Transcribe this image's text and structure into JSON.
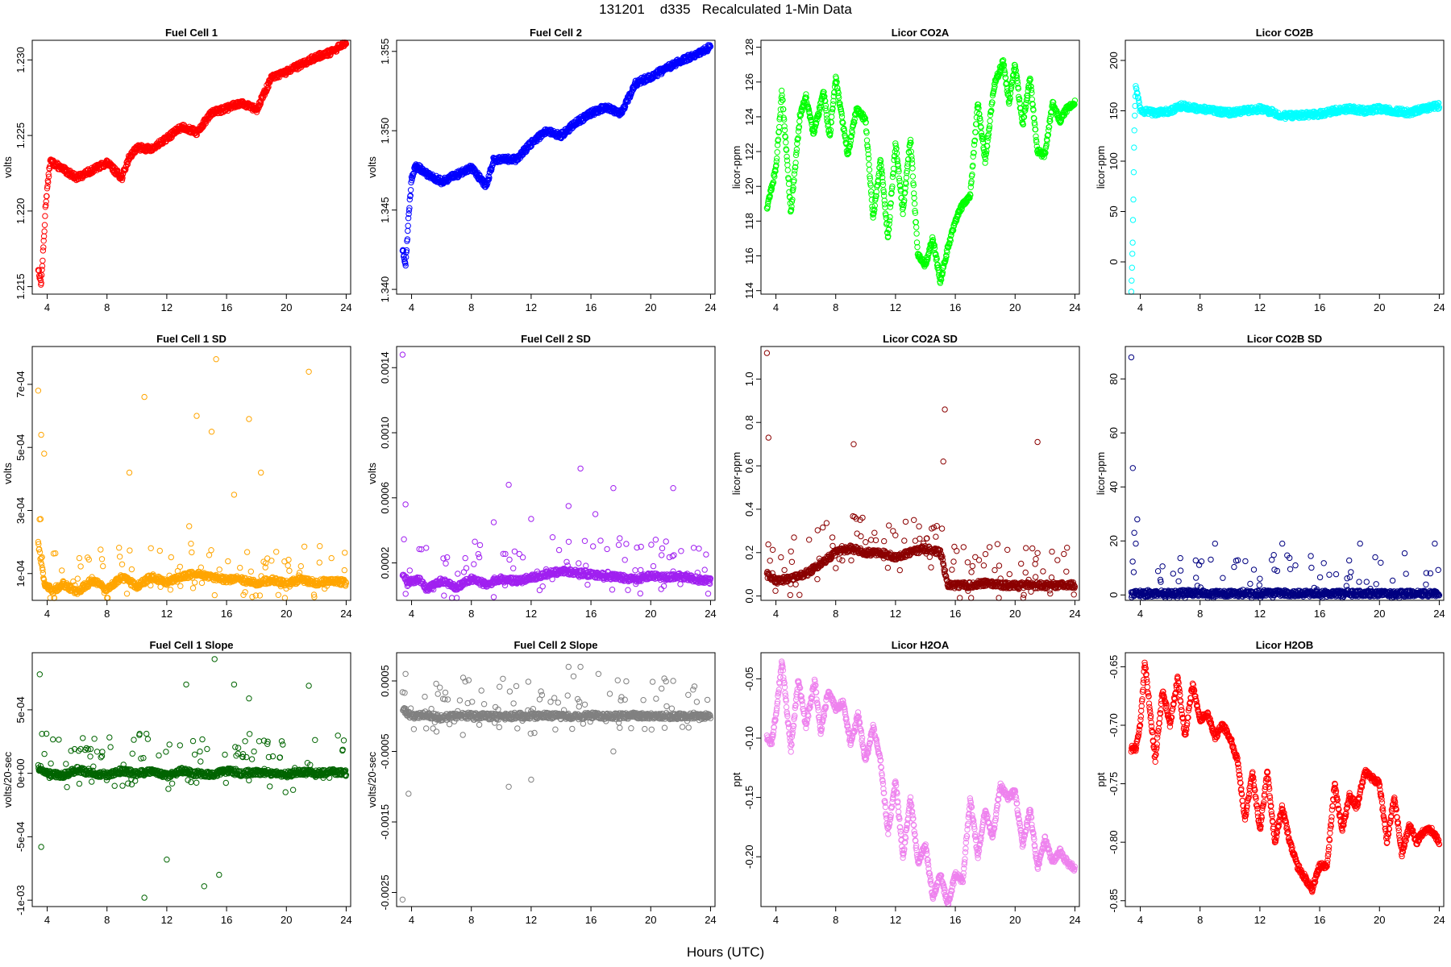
{
  "page": {
    "title": "131201    d335   Recalculated 1-Min Data",
    "xlabel": "Hours (UTC)"
  },
  "chart_data": [
    {
      "type": "scatter",
      "title": "Fuel Cell 1",
      "ylabel": "volts",
      "color": "#ff0000",
      "ylim": [
        1.2145,
        1.2313
      ],
      "yticks": [
        1.215,
        1.22,
        1.225,
        1.23
      ],
      "ytick_labels": [
        "1.215",
        "1.220",
        "1.225",
        "1.230"
      ],
      "xlim": [
        3,
        24.3
      ],
      "xticks": [
        4,
        8,
        12,
        16,
        20,
        24
      ],
      "xtick_labels": [
        "4",
        "8",
        "12",
        "16",
        "20",
        "24"
      ],
      "x": [
        3.4,
        3.6,
        3.8,
        3.9,
        4.2,
        5,
        6,
        7,
        8,
        9,
        9.5,
        10,
        11,
        12,
        13,
        14,
        15,
        16,
        17,
        18,
        19,
        20,
        21,
        22,
        23,
        24
      ],
      "y": [
        1.2162,
        1.2152,
        1.2185,
        1.2205,
        1.2233,
        1.2228,
        1.2222,
        1.2227,
        1.2232,
        1.2222,
        1.2236,
        1.2242,
        1.2241,
        1.2248,
        1.2256,
        1.2252,
        1.2265,
        1.2268,
        1.2272,
        1.2267,
        1.2288,
        1.2292,
        1.2297,
        1.2302,
        1.2305,
        1.2312
      ]
    },
    {
      "type": "scatter",
      "title": "Fuel Cell 2",
      "ylabel": "volts",
      "color": "#0000ff",
      "ylim": [
        1.3397,
        1.3557
      ],
      "yticks": [
        1.34,
        1.345,
        1.35,
        1.355
      ],
      "ytick_labels": [
        "1.340",
        "1.345",
        "1.350",
        "1.355"
      ],
      "xlim": [
        3,
        24.3
      ],
      "xticks": [
        4,
        8,
        12,
        16,
        20,
        24
      ],
      "xtick_labels": [
        "4",
        "8",
        "12",
        "16",
        "20",
        "24"
      ],
      "x": [
        3.4,
        3.6,
        3.8,
        4.0,
        4.3,
        5,
        6,
        7,
        8,
        9,
        9.5,
        10,
        11,
        12,
        13,
        14,
        15,
        16,
        17,
        18,
        19,
        20,
        21,
        22,
        23,
        24
      ],
      "y": [
        1.3425,
        1.3415,
        1.3445,
        1.347,
        1.3478,
        1.3473,
        1.3468,
        1.3472,
        1.3477,
        1.3465,
        1.3482,
        1.3482,
        1.3482,
        1.3492,
        1.35,
        1.3497,
        1.3505,
        1.3511,
        1.3515,
        1.3511,
        1.353,
        1.3534,
        1.3539,
        1.3544,
        1.3548,
        1.3553
      ]
    },
    {
      "type": "scatter",
      "title": "Licor CO2A",
      "ylabel": "licor-ppm",
      "color": "#00ff00",
      "ylim": [
        113.8,
        128.4
      ],
      "yticks": [
        114,
        116,
        118,
        120,
        122,
        124,
        126,
        128
      ],
      "ytick_labels": [
        "114",
        "116",
        "118",
        "120",
        "122",
        "124",
        "126",
        "128"
      ],
      "xlim": [
        3,
        24.3
      ],
      "xticks": [
        4,
        8,
        12,
        16,
        20,
        24
      ],
      "xtick_labels": [
        "4",
        "8",
        "12",
        "16",
        "20",
        "24"
      ],
      "x": [
        3.4,
        4.0,
        4.4,
        5.0,
        5.6,
        6.0,
        6.5,
        7.2,
        7.6,
        8.0,
        8.8,
        9.4,
        10.0,
        10.5,
        11.0,
        11.5,
        12.0,
        12.5,
        13.0,
        13.5,
        14.0,
        14.5,
        15.0,
        15.5,
        16.0,
        16.5,
        17.0,
        17.5,
        18.0,
        18.6,
        19.2,
        19.6,
        20.0,
        20.5,
        21.0,
        21.5,
        22.0,
        22.5,
        23.0,
        23.5,
        24.0
      ],
      "y": [
        118.8,
        121,
        125.5,
        118.5,
        124,
        125.2,
        123,
        125.4,
        122.8,
        126.3,
        121.8,
        124.5,
        123.8,
        118.2,
        121.5,
        117,
        122.5,
        118.5,
        122.8,
        116,
        115.5,
        117,
        114.5,
        116.5,
        118,
        119,
        119.5,
        124.8,
        121.5,
        125.8,
        127.2,
        124.8,
        127,
        123.5,
        126.2,
        122,
        121.8,
        124.8,
        123.8,
        124.5,
        124.8
      ]
    },
    {
      "type": "scatter",
      "title": "Licor CO2B",
      "ylabel": "licor-ppm",
      "color": "#00ffff",
      "ylim": [
        -32,
        220
      ],
      "yticks": [
        0,
        50,
        100,
        150,
        200
      ],
      "ytick_labels": [
        "0",
        "50",
        "100",
        "150",
        "200"
      ],
      "xlim": [
        3,
        24.3
      ],
      "xticks": [
        4,
        8,
        12,
        16,
        20,
        24
      ],
      "xtick_labels": [
        "4",
        "8",
        "12",
        "16",
        "20",
        "24"
      ],
      "x": [
        3.4,
        3.5,
        3.6,
        3.7,
        4.0,
        5,
        6,
        6.8,
        8,
        9,
        10,
        11,
        12,
        12.5,
        13,
        13.5,
        14,
        15,
        16,
        17,
        18,
        19,
        20,
        21,
        22,
        23,
        24
      ],
      "y": [
        -30,
        25,
        130,
        175,
        150,
        148,
        150,
        155,
        152,
        150,
        148,
        150,
        152,
        150,
        148,
        145,
        145,
        146,
        147,
        150,
        152,
        150,
        152,
        150,
        148,
        152,
        155
      ]
    },
    {
      "type": "scatter",
      "title": "Fuel Cell 1 SD",
      "ylabel": "volts",
      "color": "#ffa500",
      "ylim": [
        1.5e-05,
        0.00082
      ],
      "yticks": [
        0.0001,
        0.0003,
        0.0005,
        0.0007
      ],
      "ytick_labels": [
        "1e-04",
        "3e-04",
        "5e-04",
        "7e-04"
      ],
      "xlim": [
        3,
        24.3
      ],
      "xticks": [
        4,
        8,
        12,
        16,
        20,
        24
      ],
      "xtick_labels": [
        "4",
        "8",
        "12",
        "16",
        "20",
        "24"
      ],
      "x": [
        3.4,
        3.8,
        4.5,
        5,
        6,
        7,
        8,
        9,
        10,
        11,
        12,
        13,
        14,
        15,
        16,
        17,
        18,
        19,
        20,
        21,
        22,
        23,
        24
      ],
      "y": [
        0.0002,
        7e-05,
        4e-05,
        7e-05,
        4e-05,
        8e-05,
        5e-05,
        9e-05,
        6e-05,
        9e-05,
        7e-05,
        9e-05,
        0.0001,
        9e-05,
        8e-05,
        8e-05,
        7e-05,
        8e-05,
        7e-05,
        8e-05,
        7e-05,
        8e-05,
        7e-05
      ],
      "outliers_x": [
        3.4,
        3.6,
        3.8,
        10.5,
        14,
        15.3,
        17.5,
        21.5,
        9.5,
        13.5,
        15,
        16.5,
        18.3
      ],
      "outliers_y": [
        0.00068,
        0.00054,
        0.00048,
        0.00066,
        0.0006,
        0.00078,
        0.00059,
        0.00074,
        0.00042,
        0.00025,
        0.00055,
        0.00035,
        0.00042
      ]
    },
    {
      "type": "scatter",
      "title": "Fuel Cell 2 SD",
      "ylabel": "volts",
      "color": "#a020f0",
      "ylim": [
        -3e-05,
        0.00153
      ],
      "yticks": [
        0.0002,
        0.0006,
        0.001,
        0.0014
      ],
      "ytick_labels": [
        "0.0002",
        "0.0006",
        "0.0010",
        "0.0014"
      ],
      "xlim": [
        3,
        24.3
      ],
      "xticks": [
        4,
        8,
        12,
        16,
        20,
        24
      ],
      "xtick_labels": [
        "4",
        "8",
        "12",
        "16",
        "20",
        "24"
      ],
      "x": [
        3.4,
        3.8,
        4.5,
        5,
        6,
        7,
        8,
        9,
        10,
        11,
        12,
        13,
        14,
        15,
        16,
        17,
        18,
        19,
        20,
        21,
        22,
        23,
        24
      ],
      "y": [
        0.00012,
        8e-05,
        0.0001,
        4e-05,
        9e-05,
        5e-05,
        0.0001,
        7e-05,
        0.0001,
        9e-05,
        0.00011,
        0.00013,
        0.00015,
        0.00014,
        0.00013,
        0.00012,
        0.00011,
        0.0001,
        0.00012,
        0.00011,
        0.00012,
        0.0001,
        9e-05
      ],
      "outliers_x": [
        3.4,
        3.6,
        10.5,
        14.5,
        15.3,
        16.3,
        17.5,
        21.5,
        12,
        9.5
      ],
      "outliers_y": [
        0.00148,
        0.00056,
        0.00068,
        0.00055,
        0.00078,
        0.0005,
        0.00066,
        0.00066,
        0.00047,
        0.00045
      ]
    },
    {
      "type": "scatter",
      "title": "Licor CO2A SD",
      "ylabel": "licor-ppm",
      "color": "#8b0000",
      "ylim": [
        -0.02,
        1.15
      ],
      "yticks": [
        0,
        0.2,
        0.4,
        0.6,
        0.8,
        1.0
      ],
      "ytick_labels": [
        "0.0",
        "0.2",
        "0.4",
        "0.6",
        "0.8",
        "1.0"
      ],
      "xlim": [
        3,
        24.3
      ],
      "xticks": [
        4,
        8,
        12,
        16,
        20,
        24
      ],
      "xtick_labels": [
        "4",
        "8",
        "12",
        "16",
        "20",
        "24"
      ],
      "x": [
        3.4,
        4,
        5,
        6,
        7,
        8,
        9,
        10,
        11,
        12,
        13,
        14,
        15,
        15.5,
        16,
        17,
        18,
        19,
        20,
        21,
        22,
        23,
        24
      ],
      "y": [
        0.1,
        0.07,
        0.08,
        0.1,
        0.15,
        0.2,
        0.22,
        0.2,
        0.2,
        0.18,
        0.2,
        0.22,
        0.2,
        0.05,
        0.05,
        0.05,
        0.06,
        0.05,
        0.05,
        0.05,
        0.05,
        0.05,
        0.05
      ],
      "outliers_x": [
        3.4,
        3.5,
        9.2,
        15.3,
        21.5,
        15.2
      ],
      "outliers_y": [
        1.12,
        0.73,
        0.7,
        0.86,
        0.71,
        0.62
      ]
    },
    {
      "type": "scatter",
      "title": "Licor CO2B SD",
      "ylabel": "licor-ppm",
      "color": "#000080",
      "ylim": [
        -2,
        92
      ],
      "yticks": [
        0,
        20,
        40,
        60,
        80
      ],
      "ytick_labels": [
        "0",
        "20",
        "40",
        "60",
        "80"
      ],
      "xlim": [
        3,
        24.3
      ],
      "xticks": [
        4,
        8,
        12,
        16,
        20,
        24
      ],
      "xtick_labels": [
        "4",
        "8",
        "12",
        "16",
        "20",
        "24"
      ],
      "x": [
        3.4,
        4,
        5,
        6,
        7,
        8,
        9,
        10,
        11,
        12,
        13,
        14,
        15,
        16,
        17,
        18,
        19,
        20,
        21,
        22,
        23,
        24
      ],
      "y": [
        0.5,
        0.5,
        0.5,
        0.6,
        0.8,
        0.6,
        0.5,
        0.5,
        0.5,
        0.6,
        0.7,
        0.6,
        0.5,
        0.5,
        0.5,
        0.5,
        0.5,
        0.5,
        0.5,
        0.5,
        0.5,
        0.5
      ],
      "outliers_x": [
        3.4,
        3.5,
        3.6,
        3.8,
        3.7,
        9,
        12.8,
        13.5,
        18.7,
        23.7,
        6.7,
        12
      ],
      "outliers_y": [
        88,
        47,
        23,
        28,
        19,
        19,
        13,
        19,
        19,
        19,
        9,
        6
      ]
    },
    {
      "type": "scatter",
      "title": "Fuel Cell 1 Slope",
      "ylabel": "volts/20-sec",
      "color": "#006400",
      "ylim": [
        -0.00105,
        0.00095
      ],
      "yticks": [
        -0.001,
        -0.0005,
        0,
        0.0005
      ],
      "ytick_labels": [
        "-1e-03",
        "-5e-04",
        "0e+00",
        "5e-04"
      ],
      "xlim": [
        3,
        24.3
      ],
      "xticks": [
        4,
        8,
        12,
        16,
        20,
        24
      ],
      "xtick_labels": [
        "4",
        "8",
        "12",
        "16",
        "20",
        "24"
      ],
      "x": [
        3.4,
        4,
        5,
        6,
        7,
        8,
        9,
        10,
        11,
        12,
        13,
        14,
        15,
        16,
        17,
        18,
        19,
        20,
        21,
        22,
        23,
        24
      ],
      "y": [
        5e-05,
        0,
        -2e-05,
        3e-05,
        0,
        -1e-05,
        2e-05,
        0,
        1e-05,
        -2e-05,
        2e-05,
        0,
        -1e-05,
        2e-05,
        0,
        1e-05,
        0,
        -1e-05,
        1e-05,
        0,
        1e-05,
        0
      ],
      "outliers_x": [
        3.5,
        3.6,
        10.5,
        13.3,
        14.5,
        15.2,
        12,
        15.5,
        16.5,
        21.5,
        17.5
      ],
      "outliers_y": [
        0.00078,
        -0.00058,
        -0.00098,
        0.0007,
        -0.00089,
        0.0009,
        -0.00068,
        -0.0008,
        0.0007,
        0.00069,
        0.00059
      ]
    },
    {
      "type": "scatter",
      "title": "Fuel Cell 2 Slope",
      "ylabel": "volts/20-sec",
      "color": "#808080",
      "ylim": [
        -0.0027,
        0.0009
      ],
      "yticks": [
        -0.0025,
        -0.0015,
        -0.0005,
        0.0005
      ],
      "ytick_labels": [
        "-0.0025",
        "-0.0015",
        "-0.0005",
        "0.0005"
      ],
      "xlim": [
        3,
        24.3
      ],
      "xticks": [
        4,
        8,
        12,
        16,
        20,
        24
      ],
      "xtick_labels": [
        "4",
        "8",
        "12",
        "16",
        "20",
        "24"
      ],
      "x": [
        3.4,
        4,
        5,
        6,
        7,
        8,
        9,
        10,
        11,
        12,
        13,
        14,
        15,
        16,
        17,
        18,
        19,
        20,
        21,
        22,
        23,
        24
      ],
      "y": [
        0.0001,
        0,
        2e-05,
        -2e-05,
        0,
        1e-05,
        0,
        -1e-05,
        1e-05,
        0,
        1e-05,
        0,
        -1e-05,
        1e-05,
        0,
        0,
        1e-05,
        0,
        0,
        0,
        0,
        0
      ],
      "outliers_x": [
        3.4,
        3.6,
        3.8,
        10.5,
        12,
        14.5,
        15.3,
        16.5,
        17.5,
        21.5
      ],
      "outliers_y": [
        -0.0026,
        0.0006,
        -0.0011,
        -0.001,
        -0.0009,
        0.0007,
        0.0007,
        0.0006,
        -0.0005,
        0.0005
      ]
    },
    {
      "type": "scatter",
      "title": "Licor H2OA",
      "ylabel": "ppt",
      "color": "#ee82ee",
      "ylim": [
        -0.242,
        -0.028
      ],
      "yticks": [
        -0.2,
        -0.15,
        -0.1,
        -0.05
      ],
      "ytick_labels": [
        "-0.20",
        "-0.15",
        "-0.10",
        "-0.05"
      ],
      "xlim": [
        3,
        24.3
      ],
      "xticks": [
        4,
        8,
        12,
        16,
        20,
        24
      ],
      "xtick_labels": [
        "4",
        "8",
        "12",
        "16",
        "20",
        "24"
      ],
      "x": [
        3.4,
        3.7,
        4.0,
        4.4,
        5.0,
        5.5,
        6.0,
        6.6,
        7.0,
        7.5,
        8.0,
        8.5,
        9.0,
        9.5,
        10.0,
        10.5,
        11.0,
        11.5,
        12.0,
        12.5,
        13.0,
        13.5,
        14.0,
        14.5,
        15.0,
        15.5,
        16.0,
        16.5,
        17.0,
        17.5,
        18.0,
        18.5,
        19.0,
        19.5,
        20.0,
        20.5,
        21.0,
        21.5,
        22.0,
        22.5,
        23.0,
        23.5,
        24.0
      ],
      "y": [
        -0.1,
        -0.105,
        -0.08,
        -0.035,
        -0.11,
        -0.05,
        -0.09,
        -0.052,
        -0.095,
        -0.06,
        -0.075,
        -0.07,
        -0.105,
        -0.08,
        -0.12,
        -0.09,
        -0.12,
        -0.18,
        -0.135,
        -0.2,
        -0.15,
        -0.205,
        -0.19,
        -0.235,
        -0.215,
        -0.24,
        -0.215,
        -0.22,
        -0.15,
        -0.2,
        -0.16,
        -0.185,
        -0.14,
        -0.15,
        -0.145,
        -0.19,
        -0.16,
        -0.21,
        -0.185,
        -0.205,
        -0.195,
        -0.205,
        -0.21
      ]
    },
    {
      "type": "scatter",
      "title": "Licor H2OB",
      "ylabel": "ppt",
      "color": "#ff0000",
      "ylim": [
        -0.855,
        -0.638
      ],
      "yticks": [
        -0.85,
        -0.8,
        -0.75,
        -0.7,
        -0.65
      ],
      "ytick_labels": [
        "-0.85",
        "-0.80",
        "-0.75",
        "-0.70",
        "-0.65"
      ],
      "xlim": [
        3,
        24.3
      ],
      "xticks": [
        4,
        8,
        12,
        16,
        20,
        24
      ],
      "xtick_labels": [
        "4",
        "8",
        "12",
        "16",
        "20",
        "24"
      ],
      "x": [
        3.4,
        3.7,
        4.0,
        4.3,
        5.0,
        5.5,
        6.0,
        6.5,
        7.0,
        7.5,
        8.0,
        8.5,
        9.0,
        9.5,
        10.0,
        10.5,
        11.0,
        11.5,
        12.0,
        12.5,
        13.0,
        13.5,
        14.0,
        14.5,
        15.0,
        15.5,
        16.0,
        16.5,
        17.0,
        17.5,
        18.0,
        18.5,
        19.0,
        19.5,
        20.0,
        20.5,
        21.0,
        21.5,
        22.0,
        22.5,
        23.0,
        23.5,
        24.0
      ],
      "y": [
        -0.72,
        -0.72,
        -0.7,
        -0.645,
        -0.73,
        -0.67,
        -0.7,
        -0.66,
        -0.71,
        -0.665,
        -0.695,
        -0.69,
        -0.71,
        -0.7,
        -0.71,
        -0.73,
        -0.78,
        -0.74,
        -0.79,
        -0.74,
        -0.8,
        -0.77,
        -0.8,
        -0.82,
        -0.83,
        -0.84,
        -0.82,
        -0.82,
        -0.75,
        -0.79,
        -0.76,
        -0.77,
        -0.74,
        -0.745,
        -0.75,
        -0.8,
        -0.76,
        -0.81,
        -0.785,
        -0.8,
        -0.79,
        -0.79,
        -0.8
      ]
    }
  ]
}
